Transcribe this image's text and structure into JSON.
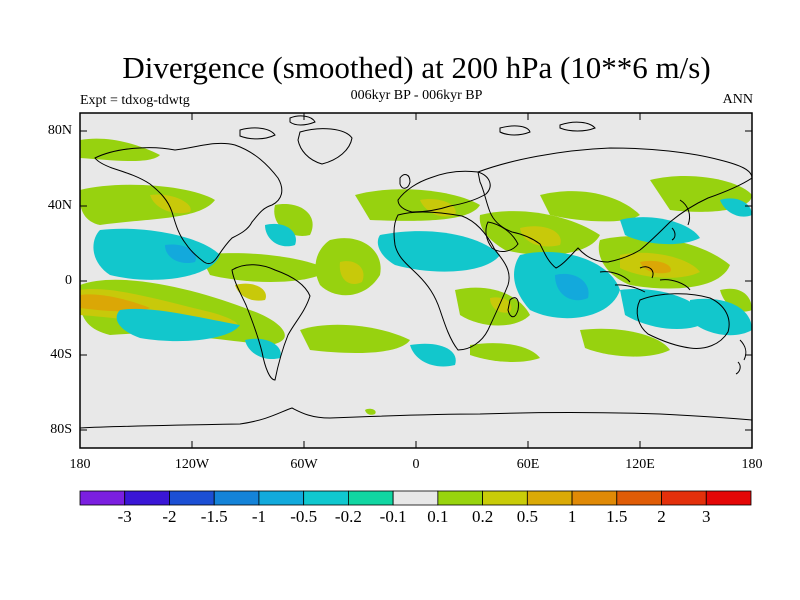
{
  "title": "Divergence (smoothed) at 200 hPa (10**6 m/s)",
  "experiment": "Expt = tdxog-tdwtg",
  "subtitle": "006kyr BP - 006kyr BP",
  "season": "ANN",
  "lat_labels": [
    "80N",
    "40N",
    "0",
    "40S",
    "80S"
  ],
  "lon_labels": [
    "180",
    "120W",
    "60W",
    "0",
    "60E",
    "120E",
    "180"
  ],
  "colorbar": {
    "labels": [
      "-3",
      "-2",
      "-1.5",
      "-1",
      "-0.5",
      "-0.2",
      "-0.1",
      "0.1",
      "0.2",
      "0.5",
      "1",
      "1.5",
      "2",
      "3"
    ],
    "colors": [
      "#7b1fe0",
      "#3a16d6",
      "#1c4fd4",
      "#1483d8",
      "#12aadc",
      "#10c8cf",
      "#11d6a2",
      "#e8e8e8",
      "#98d40e",
      "#c9cc08",
      "#dbaa06",
      "#e08a06",
      "#e05c06",
      "#e3300b",
      "#e40707"
    ]
  },
  "map_colors": {
    "background": "#e8e8e8",
    "neg_light": "#12c7cc",
    "neg_mid": "#13a9dc",
    "pos_light": "#97d20f",
    "pos_mid": "#c8c90a",
    "pos_strong": "#dba706",
    "coast": "#000000"
  }
}
